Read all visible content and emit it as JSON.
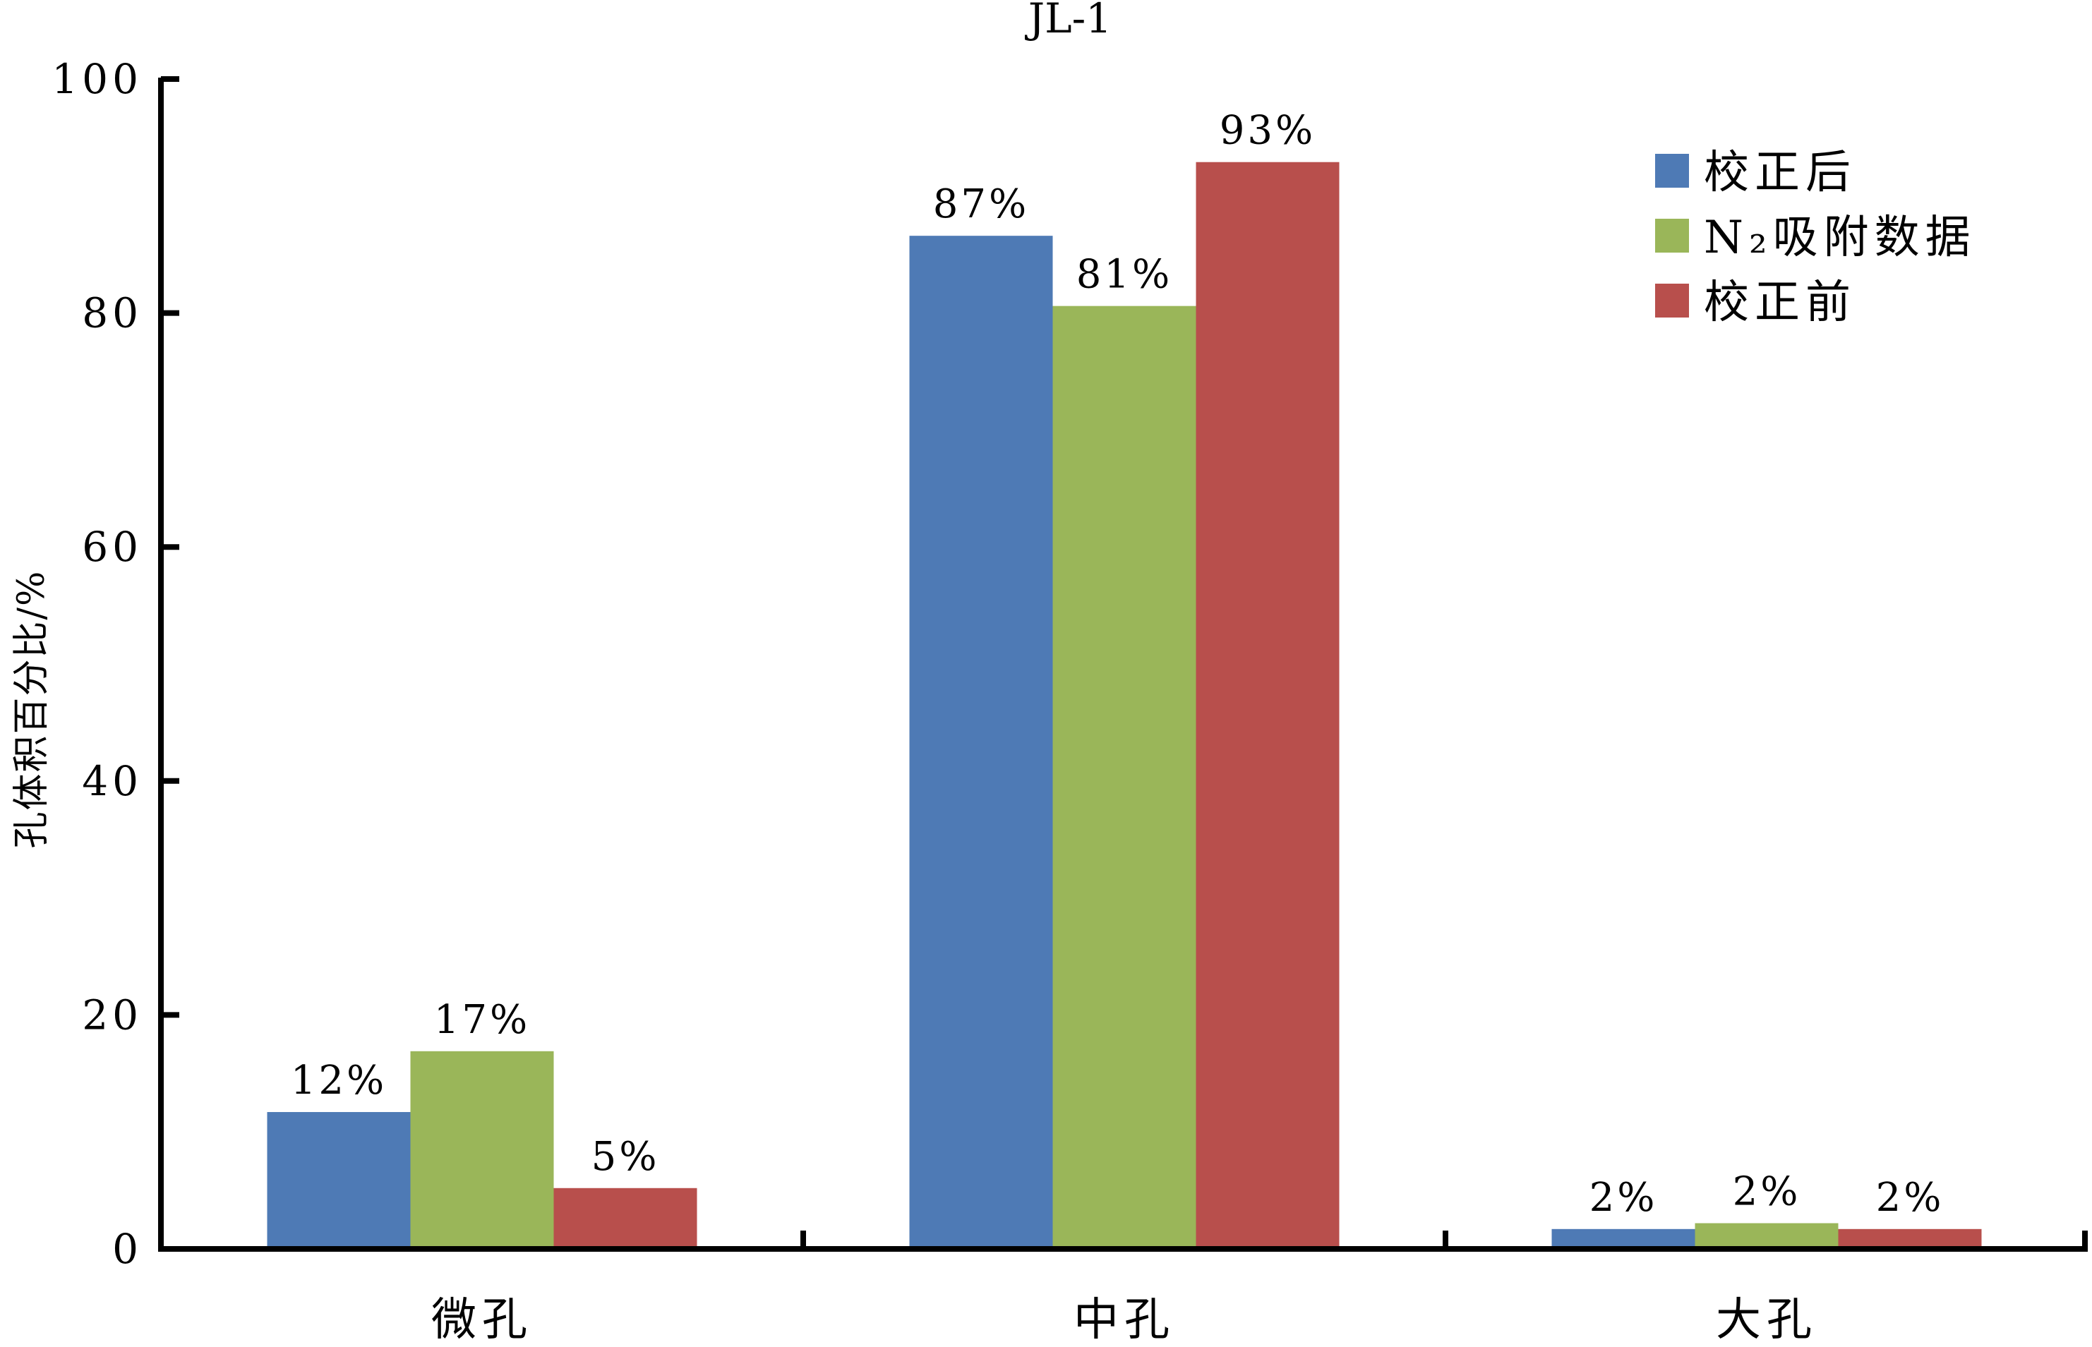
{
  "chart_data": {
    "type": "bar",
    "title": "JL-1",
    "xlabel": "",
    "ylabel": "孔体积百分比/%",
    "ylim": [
      0,
      100
    ],
    "yticks": [
      0,
      20,
      40,
      60,
      80,
      100
    ],
    "categories": [
      "微孔",
      "中孔",
      "大孔"
    ],
    "series": [
      {
        "name": "校正后",
        "color": "#4E7AB5",
        "values": [
          11.7,
          86.6,
          1.7
        ],
        "labels": [
          "12%",
          "87%",
          "2%"
        ]
      },
      {
        "name": "N₂吸附数据",
        "color": "#9AB659",
        "values": [
          16.9,
          80.6,
          2.2
        ],
        "labels": [
          "17%",
          "81%",
          "2%"
        ]
      },
      {
        "name": "校正前",
        "color": "#B84F4C",
        "values": [
          5.2,
          92.9,
          1.7
        ],
        "labels": [
          "5%",
          "93%",
          "2%"
        ]
      }
    ],
    "grid": false,
    "legend": "top-right"
  }
}
